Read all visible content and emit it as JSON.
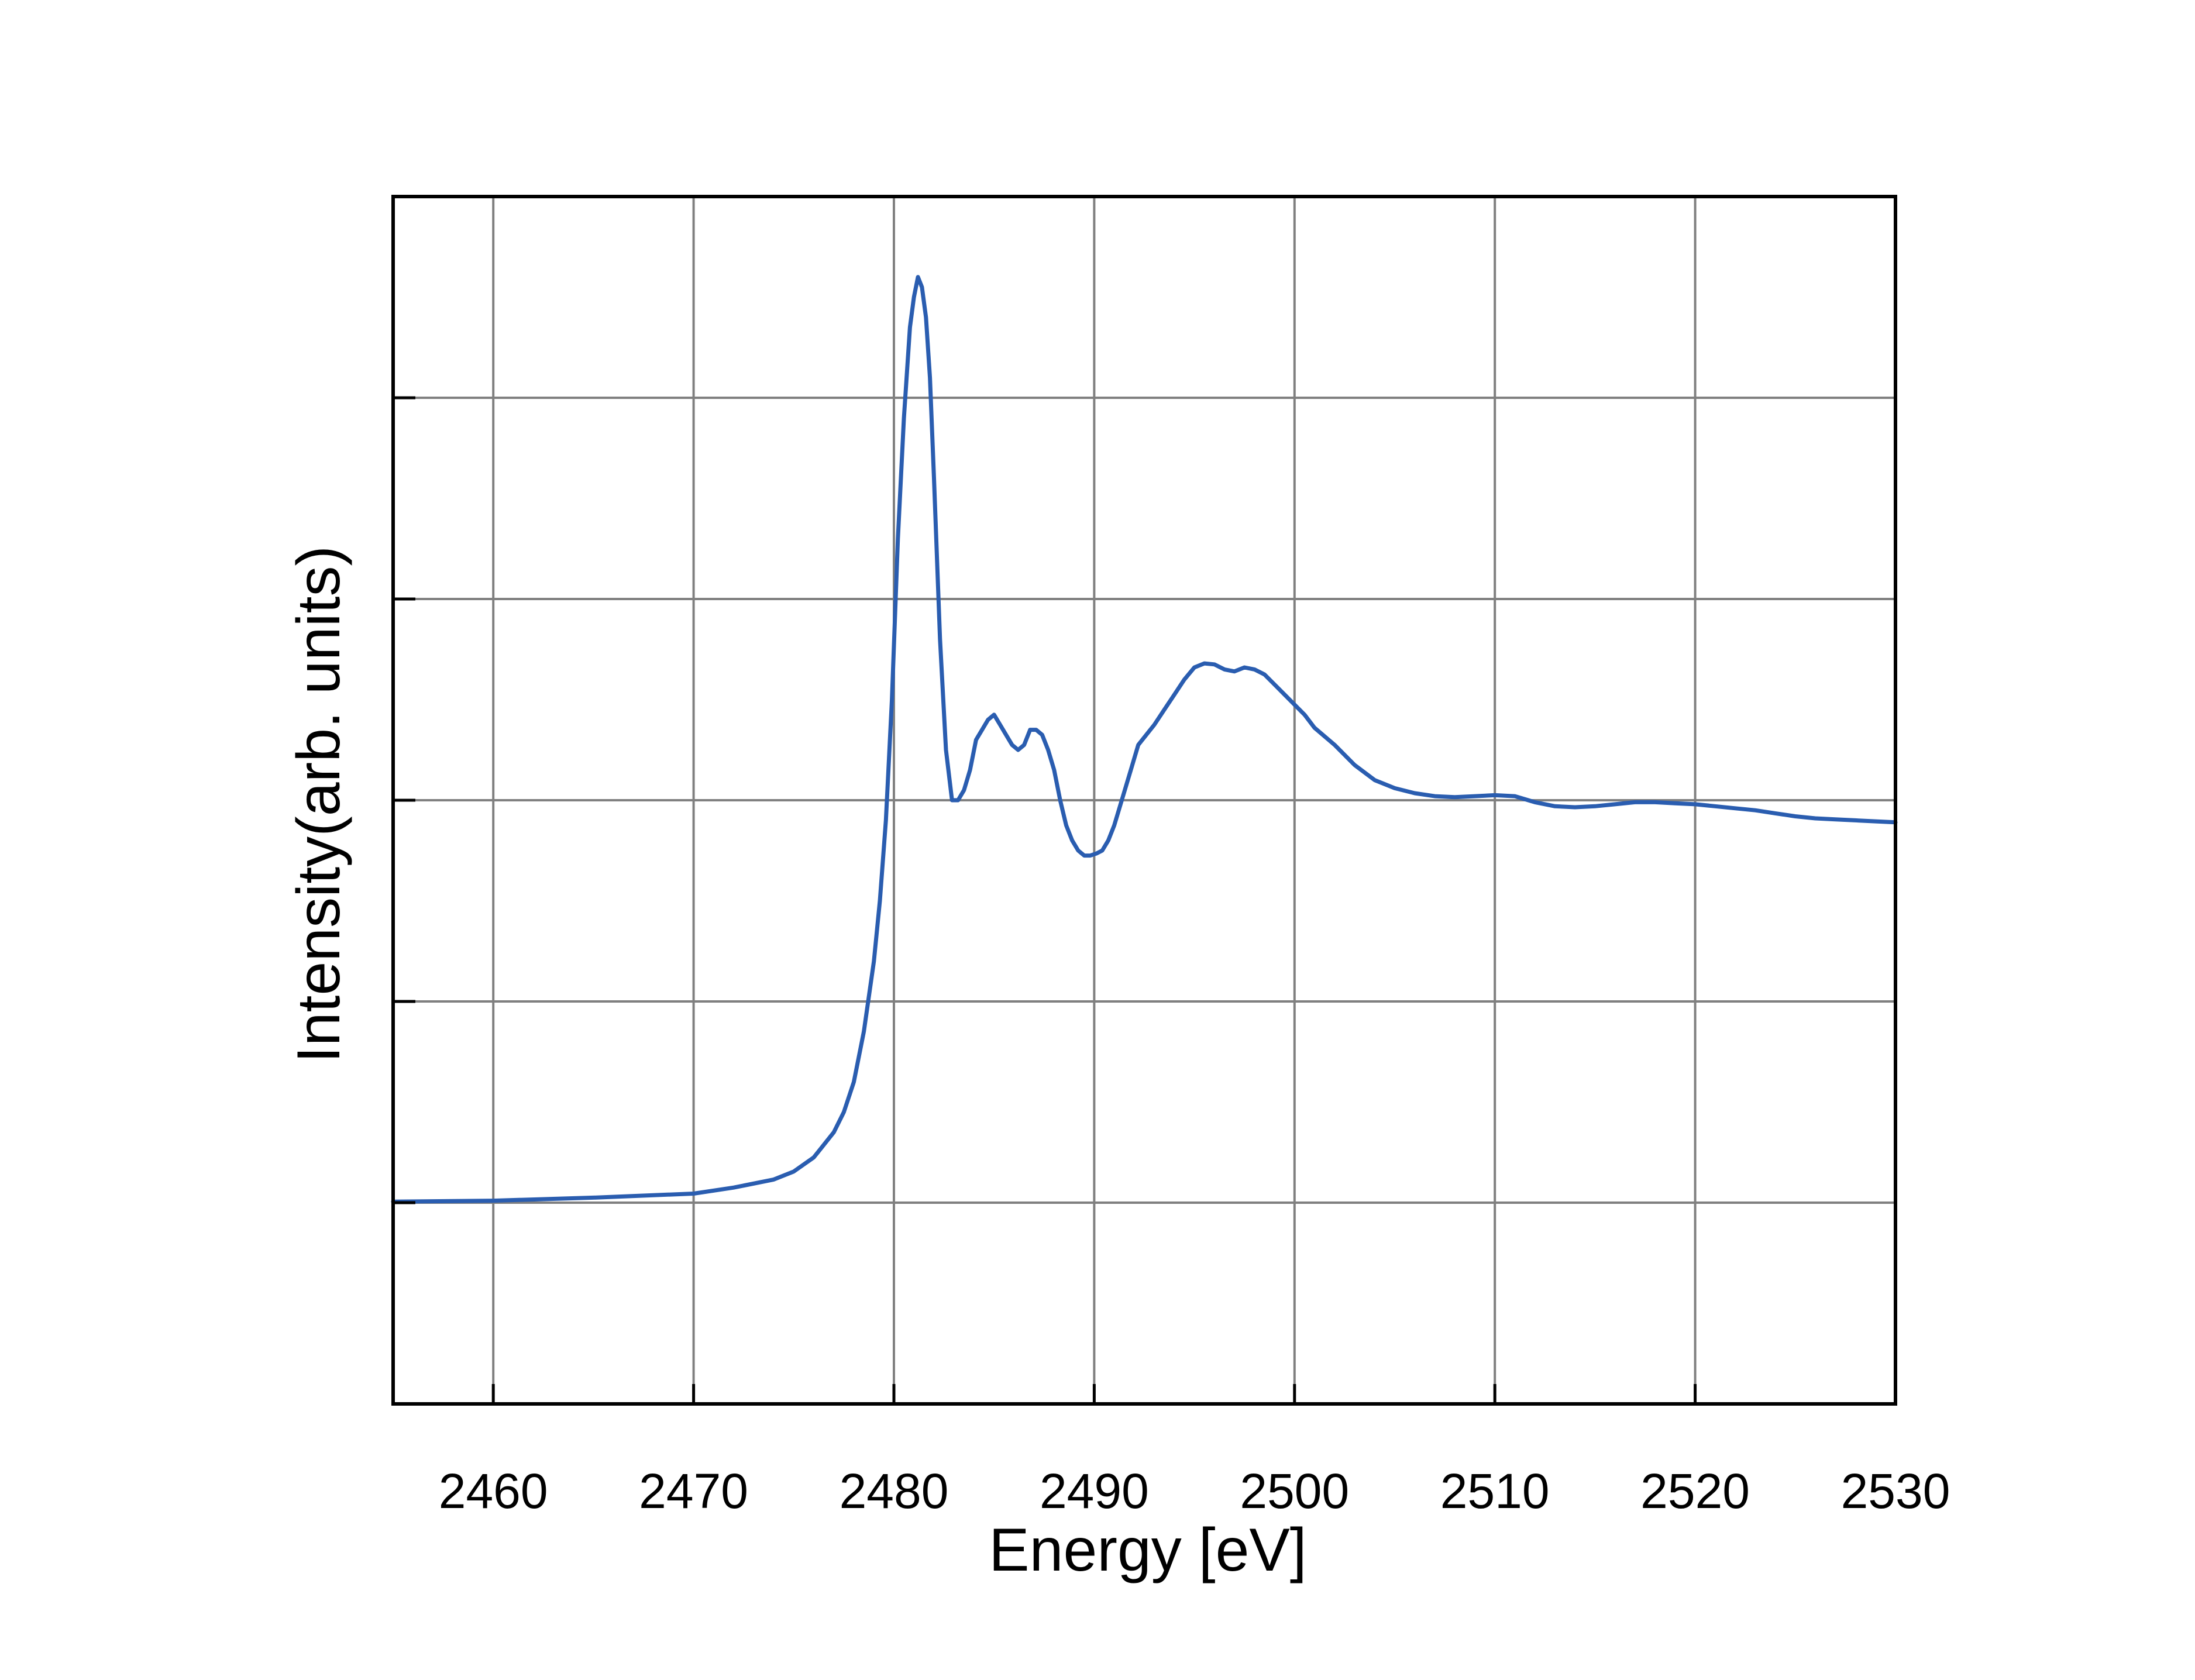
{
  "chart_data": {
    "type": "line",
    "title": "",
    "xlabel": "Energy [eV]",
    "ylabel": "Intensity(arb. units)",
    "xlim": [
      2455,
      2530
    ],
    "ylim": [
      0,
      1.2
    ],
    "xticks": [
      2460,
      2470,
      2480,
      2490,
      2500,
      2510,
      2520,
      2530
    ],
    "xtick_labels": [
      "2460",
      "2470",
      "2480",
      "2490",
      "2500",
      "2510",
      "2520",
      "2530"
    ],
    "yticks": [
      0.2,
      0.4,
      0.6,
      0.8,
      1.0
    ],
    "ytick_labels": [],
    "grid": true,
    "legend": null,
    "colors": {
      "line": "#2a5db0",
      "grid": "#808080",
      "axis": "#000000"
    },
    "series": [
      {
        "name": "Intensity",
        "x": [
          2455,
          2460,
          2465,
          2470,
          2472,
          2474,
          2475,
          2476,
          2477,
          2477.5,
          2478,
          2478.5,
          2479,
          2479.3,
          2479.6,
          2479.9,
          2480.2,
          2480.5,
          2480.8,
          2481.0,
          2481.2,
          2481.4,
          2481.6,
          2481.8,
          2482.0,
          2482.3,
          2482.6,
          2482.9,
          2483.2,
          2483.5,
          2483.8,
          2484.1,
          2484.4,
          2484.7,
          2485.0,
          2485.3,
          2485.6,
          2485.9,
          2486.2,
          2486.5,
          2486.8,
          2487.1,
          2487.4,
          2487.7,
          2488.0,
          2488.3,
          2488.6,
          2488.9,
          2489.2,
          2489.5,
          2489.8,
          2490.1,
          2490.4,
          2490.7,
          2491.0,
          2491.3,
          2491.6,
          2491.9,
          2492.2,
          2492.6,
          2493.0,
          2493.5,
          2494.0,
          2494.5,
          2495.0,
          2495.5,
          2496.0,
          2496.5,
          2497.0,
          2497.5,
          2498.0,
          2498.5,
          2499.0,
          2499.5,
          2500.0,
          2500.5,
          2501.0,
          2502.0,
          2503.0,
          2504.0,
          2505.0,
          2506.0,
          2507.0,
          2508.0,
          2509.0,
          2510.0,
          2511.0,
          2512.0,
          2513.0,
          2514.0,
          2515.0,
          2516.0,
          2517.0,
          2518.0,
          2519.0,
          2520.0,
          2521.0,
          2522.0,
          2523.0,
          2524.0,
          2525.0,
          2526.0,
          2527.0,
          2528.0,
          2529.0,
          2530.0
        ],
        "y": [
          0.201,
          0.202,
          0.205,
          0.209,
          0.215,
          0.223,
          0.231,
          0.245,
          0.27,
          0.29,
          0.32,
          0.37,
          0.44,
          0.5,
          0.58,
          0.7,
          0.86,
          0.98,
          1.07,
          1.1,
          1.12,
          1.11,
          1.08,
          1.02,
          0.92,
          0.76,
          0.65,
          0.6,
          0.6,
          0.61,
          0.63,
          0.66,
          0.67,
          0.68,
          0.685,
          0.675,
          0.665,
          0.655,
          0.65,
          0.655,
          0.67,
          0.67,
          0.665,
          0.65,
          0.63,
          0.6,
          0.575,
          0.56,
          0.55,
          0.545,
          0.545,
          0.547,
          0.55,
          0.56,
          0.575,
          0.595,
          0.615,
          0.635,
          0.655,
          0.665,
          0.675,
          0.69,
          0.705,
          0.72,
          0.732,
          0.736,
          0.735,
          0.73,
          0.728,
          0.732,
          0.73,
          0.725,
          0.715,
          0.705,
          0.695,
          0.685,
          0.672,
          0.655,
          0.635,
          0.62,
          0.612,
          0.607,
          0.604,
          0.603,
          0.604,
          0.605,
          0.604,
          0.598,
          0.594,
          0.593,
          0.594,
          0.596,
          0.598,
          0.598,
          0.597,
          0.596,
          0.594,
          0.592,
          0.59,
          0.587,
          0.584,
          0.582,
          0.581,
          0.58,
          0.579,
          0.578
        ]
      }
    ]
  }
}
